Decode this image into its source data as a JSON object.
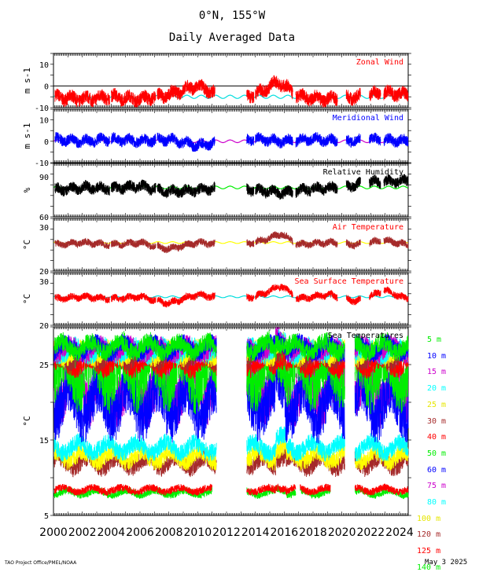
{
  "header": {
    "title": "0°N, 155°W",
    "subtitle": "Daily Averaged Data"
  },
  "footer": {
    "credit": "TAO Project Office/PMEL/NOAA",
    "date": "May  3 2025"
  },
  "colors": {
    "red": "#ff0000",
    "blue": "#0000ff",
    "black": "#000000",
    "brown": "#a52a2a",
    "yellow": "#ffff00",
    "cyan": "#00ffff",
    "magenta": "#cc00cc",
    "green": "#00ee00"
  },
  "chart_data": [
    {
      "type": "line",
      "title": "Zonal Wind",
      "ylabel": "m s-1",
      "ylim": [
        -10,
        15
      ],
      "yticks": [
        "10",
        "0",
        "-10"
      ],
      "x": [
        2000,
        2024.5
      ],
      "series": [
        {
          "values_by_year": [
            [
              2000,
              -5
            ],
            [
              2002,
              -6
            ],
            [
              2004,
              -5
            ],
            [
              2006,
              -6
            ],
            [
              2008,
              -4
            ],
            [
              2009.9,
              0
            ],
            [
              2012,
              -5
            ],
            [
              2014,
              -4
            ],
            [
              2015.6,
              2
            ],
            [
              2017,
              -5
            ],
            [
              2019,
              -6
            ],
            [
              2021,
              -5
            ],
            [
              2023,
              -3
            ],
            [
              2024.5,
              -4
            ]
          ]
        }
      ]
    },
    {
      "type": "line",
      "title": "Meridional Wind",
      "ylabel": "m s-1",
      "ylim": [
        -10,
        15
      ],
      "yticks": [
        "10",
        "0",
        "-10"
      ],
      "series": [
        {
          "values_by_year": [
            [
              2000,
              1
            ],
            [
              2002,
              0
            ],
            [
              2004,
              1
            ],
            [
              2006,
              0
            ],
            [
              2008,
              1
            ],
            [
              2010,
              -2
            ],
            [
              2012,
              0
            ],
            [
              2014,
              1
            ],
            [
              2016,
              0
            ],
            [
              2018,
              1
            ],
            [
              2020,
              0
            ],
            [
              2022,
              1
            ],
            [
              2024.5,
              0
            ]
          ]
        }
      ]
    },
    {
      "type": "line",
      "title": "Relative Humidity",
      "ylabel": "%",
      "ylim": [
        60,
        100
      ],
      "yticks": [
        "90",
        "60"
      ],
      "series": [
        {
          "values_by_year": [
            [
              2000,
              80
            ],
            [
              2002,
              82
            ],
            [
              2004,
              81
            ],
            [
              2006,
              83
            ],
            [
              2008,
              79
            ],
            [
              2010,
              80
            ],
            [
              2012,
              82
            ],
            [
              2014,
              80
            ],
            [
              2016,
              78
            ],
            [
              2018,
              81
            ],
            [
              2020,
              82
            ],
            [
              2022,
              86
            ],
            [
              2024.5,
              87
            ]
          ]
        }
      ]
    },
    {
      "type": "line",
      "title": "Air Temperature",
      "ylabel": "°C",
      "ylim": [
        20,
        32
      ],
      "yticks": [
        "30",
        "20"
      ],
      "series": [
        {
          "values_by_year": [
            [
              2000,
              26
            ],
            [
              2002,
              26.5
            ],
            [
              2004,
              26
            ],
            [
              2006,
              26.5
            ],
            [
              2008,
              25
            ],
            [
              2010,
              26.5
            ],
            [
              2012,
              26
            ],
            [
              2014,
              26.5
            ],
            [
              2015.8,
              28.5
            ],
            [
              2017,
              26
            ],
            [
              2019,
              26.5
            ],
            [
              2021,
              26
            ],
            [
              2023,
              27
            ],
            [
              2024.5,
              26
            ]
          ]
        }
      ]
    },
    {
      "type": "line",
      "title": "Sea Surface Temperature",
      "ylabel": "°C",
      "ylim": [
        20,
        32
      ],
      "yticks": [
        "30",
        "20"
      ],
      "series": [
        {
          "values_by_year": [
            [
              2000,
              26
            ],
            [
              2002,
              26.5
            ],
            [
              2004,
              26
            ],
            [
              2006,
              26.5
            ],
            [
              2008,
              25
            ],
            [
              2010,
              27
            ],
            [
              2012,
              26
            ],
            [
              2014,
              26.5
            ],
            [
              2015.8,
              29
            ],
            [
              2017,
              26
            ],
            [
              2019,
              27
            ],
            [
              2021,
              25.5
            ],
            [
              2023,
              28
            ],
            [
              2024.5,
              26
            ]
          ]
        }
      ]
    },
    {
      "type": "line",
      "title": "Sea Temperatures",
      "ylabel": "°C",
      "ylim": [
        5,
        30
      ],
      "yticks": [
        "25",
        "15",
        "5"
      ],
      "legend": [
        {
          "label": "5 m",
          "color": "#00ee00",
          "mean": 27.3
        },
        {
          "label": "10 m",
          "color": "#0000ff",
          "mean": 27.2
        },
        {
          "label": "15 m",
          "color": "#cc00cc",
          "mean": 27.0
        },
        {
          "label": "20 m",
          "color": "#00ffff",
          "mean": 26.8
        },
        {
          "label": "25 m",
          "color": "#ffff00",
          "mean": 26.5
        },
        {
          "label": "30 m",
          "color": "#a52a2a",
          "mean": 26.0
        },
        {
          "label": "40 m",
          "color": "#ff0000",
          "mean": 25.0
        },
        {
          "label": "50 m",
          "color": "#00ee00",
          "mean": 24.0
        },
        {
          "label": "60 m",
          "color": "#0000ff",
          "mean": 20.0
        },
        {
          "label": "75 m",
          "color": "#cc00cc",
          "mean": 22.0
        },
        {
          "label": "80 m",
          "color": "#00ffff",
          "mean": 14.0
        },
        {
          "label": "100 m",
          "color": "#ffff00",
          "mean": 12.8
        },
        {
          "label": "120 m",
          "color": "#a52a2a",
          "mean": 12.0
        },
        {
          "label": "125 m",
          "color": "#ff0000",
          "mean": 8.4
        },
        {
          "label": "140 m",
          "color": "#00ee00",
          "mean": 8.0
        }
      ],
      "gap_years": [
        [
          2012.1,
          2013.3
        ]
      ]
    }
  ],
  "xaxis": {
    "range": [
      2000,
      2024.6
    ],
    "labels": [
      "2000",
      "2002",
      "2004",
      "2006",
      "2008",
      "2010",
      "2012",
      "2014",
      "2016",
      "2018",
      "2020",
      "2022",
      "2024"
    ],
    "label_years": [
      2000,
      2002,
      2004,
      2006,
      2008,
      2010,
      2012,
      2014,
      2016,
      2018,
      2020,
      2022,
      2024
    ]
  }
}
